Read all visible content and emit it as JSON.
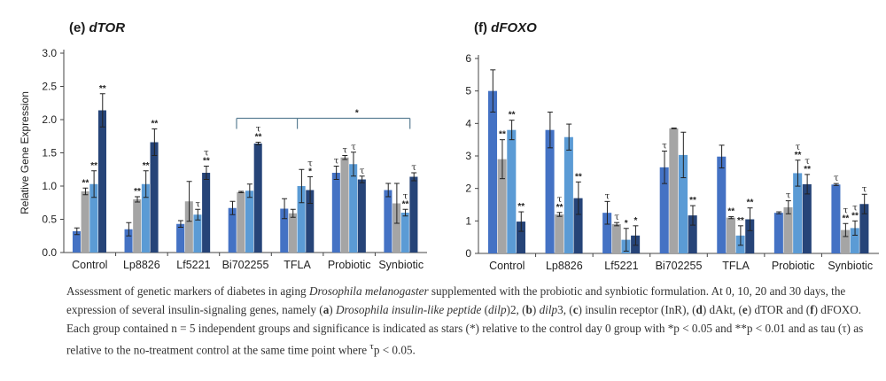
{
  "figure": {
    "caption": {
      "part1": "Assessment of genetic markers of diabetes in aging ",
      "species": "Drosophila melanogaster",
      "part2": " supplemented with the probiotic and synbiotic formulation. At 0, 10, 20 and 30 days, the expression of several insulin-signaling genes, namely (",
      "a": "a",
      "part3": ") ",
      "dilp_full": "Drosophila insulin-like peptide",
      "part4": " (",
      "dilp": "dilp",
      "part5": ")2, (",
      "b": "b",
      "part6": ") ",
      "dilp3": "dilp",
      "part7": "3, (",
      "c": "c",
      "part8": ") insulin receptor (InR), (",
      "d": "d",
      "part9": ") dAkt, (",
      "e": "e",
      "part10": ") dTOR and (",
      "f": "f",
      "part11": ") dFOXO. Each group contained n = 5 independent groups and significance is indicated as stars (*) relative to the control day 0 group with *p < 0.05 and **p < 0.01 and as tau (τ) as relative to the no-treatment control at the same time point where ",
      "tau_sup": "τ",
      "part12": "p < 0.05."
    }
  },
  "chart_data": [
    {
      "type": "bar",
      "panel_letter": "(e)",
      "title": "dTOR",
      "ylabel": "Relative Gene Expression",
      "xlabel": "",
      "ylim": [
        0,
        3.0
      ],
      "yticks": [
        "0.0",
        "0.5",
        "1.0",
        "1.5",
        "2.0",
        "2.5",
        "3.0"
      ],
      "ytick_values": [
        0,
        0.5,
        1.0,
        1.5,
        2.0,
        2.5,
        3.0
      ],
      "grid": false,
      "categories": [
        "Control",
        "Lp8826",
        "Lf5221",
        "Bi702255",
        "TFLA",
        "Probiotic",
        "Synbiotic"
      ],
      "series_colors": [
        "#4472c4",
        "#a5a5a5",
        "#5b9bd5",
        "#264478"
      ],
      "series": [
        {
          "values": [
            0.32,
            0.35,
            0.43,
            0.67,
            0.66,
            1.2,
            0.94
          ],
          "errors": [
            0.05,
            0.1,
            0.05,
            0.1,
            0.15,
            0.1,
            0.1
          ]
        },
        {
          "values": [
            0.92,
            0.8,
            0.77,
            0.91,
            0.59,
            1.43,
            0.74
          ],
          "errors": [
            0.05,
            0.04,
            0.3,
            0.01,
            0.06,
            0.03,
            0.3
          ]
        },
        {
          "values": [
            1.03,
            1.03,
            0.57,
            0.93,
            1.0,
            1.33,
            0.6
          ],
          "errors": [
            0.2,
            0.2,
            0.08,
            0.1,
            0.25,
            0.18,
            0.05
          ]
        },
        {
          "values": [
            2.14,
            1.66,
            1.2,
            1.64,
            0.94,
            1.1,
            1.14
          ],
          "errors": [
            0.25,
            0.2,
            0.1,
            0.02,
            0.2,
            0.05,
            0.06
          ]
        }
      ],
      "annotations": [
        {
          "cat": 0,
          "series": 1,
          "text": "**"
        },
        {
          "cat": 0,
          "series": 2,
          "text": "**"
        },
        {
          "cat": 0,
          "series": 3,
          "text": "**"
        },
        {
          "cat": 1,
          "series": 1,
          "text": "**"
        },
        {
          "cat": 1,
          "series": 2,
          "text": "**"
        },
        {
          "cat": 1,
          "series": 3,
          "text": "**"
        },
        {
          "cat": 2,
          "series": 2,
          "text": "τ"
        },
        {
          "cat": 2,
          "series": 3,
          "text": "**",
          "tau": true
        },
        {
          "cat": 3,
          "series": 3,
          "text": "**",
          "tau": true
        },
        {
          "cat": 4,
          "series": 3,
          "text": "*",
          "tau": true
        },
        {
          "cat": 5,
          "series": 0,
          "text": "τ"
        },
        {
          "cat": 5,
          "series": 1,
          "text": "τ"
        },
        {
          "cat": 5,
          "series": 2,
          "text": "τ"
        },
        {
          "cat": 5,
          "series": 3,
          "text": "τ"
        },
        {
          "cat": 6,
          "series": 2,
          "text": "**",
          "tau": true
        },
        {
          "cat": 6,
          "series": 3,
          "text": "τ"
        }
      ],
      "bracket": {
        "from_cat": 3,
        "to_cat": 6,
        "level": 2.02,
        "label": "*",
        "ticks_at": [
          3,
          4,
          6
        ]
      }
    },
    {
      "type": "bar",
      "panel_letter": "(f)",
      "title": "dFOXO",
      "ylabel": "",
      "xlabel": "",
      "ylim": [
        0,
        6
      ],
      "yticks": [
        "0",
        "1",
        "2",
        "3",
        "4",
        "5",
        "6"
      ],
      "ytick_values": [
        0,
        1,
        2,
        3,
        4,
        5,
        6
      ],
      "grid": false,
      "categories": [
        "Control",
        "Lp8826",
        "Lf5221",
        "Bi702255",
        "TFLA",
        "Probiotic",
        "Synbiotic"
      ],
      "series_colors": [
        "#4472c4",
        "#a5a5a5",
        "#5b9bd5",
        "#264478"
      ],
      "series": [
        {
          "values": [
            5.0,
            3.8,
            1.25,
            2.65,
            2.98,
            1.25,
            2.12
          ],
          "errors": [
            0.65,
            0.55,
            0.35,
            0.5,
            0.35,
            0.03,
            0.03
          ]
        },
        {
          "values": [
            2.9,
            1.2,
            0.9,
            3.85,
            1.1,
            1.42,
            0.72
          ],
          "errors": [
            0.6,
            0.06,
            0.05,
            0.01,
            0.03,
            0.2,
            0.2
          ]
        },
        {
          "values": [
            3.8,
            3.58,
            0.42,
            3.03,
            0.55,
            2.47,
            0.78
          ],
          "errors": [
            0.3,
            0.4,
            0.35,
            0.7,
            0.3,
            0.4,
            0.22
          ]
        },
        {
          "values": [
            0.98,
            1.7,
            0.55,
            1.17,
            1.05,
            2.13,
            1.52
          ],
          "errors": [
            0.3,
            0.5,
            0.3,
            0.3,
            0.35,
            0.3,
            0.3
          ]
        }
      ],
      "annotations": [
        {
          "cat": 0,
          "series": 1,
          "text": "**"
        },
        {
          "cat": 0,
          "series": 2,
          "text": "**"
        },
        {
          "cat": 0,
          "series": 3,
          "text": "**"
        },
        {
          "cat": 1,
          "series": 1,
          "text": "**",
          "tau": true
        },
        {
          "cat": 1,
          "series": 3,
          "text": "**"
        },
        {
          "cat": 2,
          "series": 0,
          "text": "τ"
        },
        {
          "cat": 2,
          "series": 1,
          "text": "τ"
        },
        {
          "cat": 2,
          "series": 2,
          "text": "*"
        },
        {
          "cat": 2,
          "series": 3,
          "text": "*"
        },
        {
          "cat": 3,
          "series": 0,
          "text": "τ"
        },
        {
          "cat": 3,
          "series": 3,
          "text": "**"
        },
        {
          "cat": 4,
          "series": 1,
          "text": "**"
        },
        {
          "cat": 4,
          "series": 2,
          "text": "**"
        },
        {
          "cat": 4,
          "series": 3,
          "text": "**"
        },
        {
          "cat": 5,
          "series": 1,
          "text": "τ"
        },
        {
          "cat": 5,
          "series": 2,
          "text": "**",
          "tau": true
        },
        {
          "cat": 5,
          "series": 3,
          "text": "**",
          "tau": true
        },
        {
          "cat": 6,
          "series": 0,
          "text": "τ"
        },
        {
          "cat": 6,
          "series": 1,
          "text": "**",
          "tau": true
        },
        {
          "cat": 6,
          "series": 2,
          "text": "**",
          "tau": true
        },
        {
          "cat": 6,
          "series": 3,
          "text": "τ"
        }
      ]
    }
  ]
}
